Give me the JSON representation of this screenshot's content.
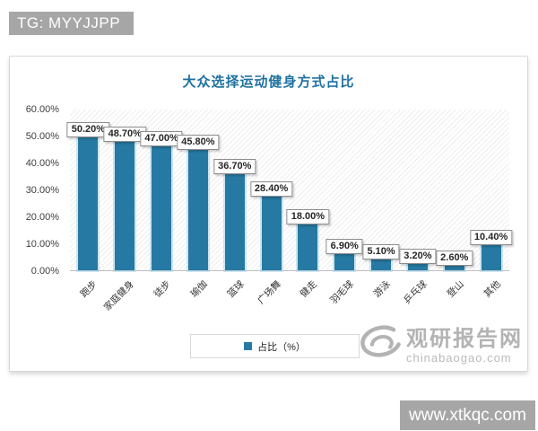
{
  "watermarks": {
    "tg_badge": "TG: MYYJJPP",
    "site_banner": "www.xtkqc.com",
    "logo": {
      "name": "观研报告网",
      "domain": "chinabaogao.com"
    }
  },
  "chart_data": {
    "type": "bar",
    "title": "大众选择运动健身方式占比",
    "categories": [
      "跑步",
      "家庭健身",
      "徒步",
      "瑜伽",
      "篮球",
      "广场舞",
      "健走",
      "羽毛球",
      "游泳",
      "乒乓球",
      "登山",
      "其他"
    ],
    "values": [
      50.2,
      48.7,
      47.0,
      45.8,
      36.7,
      28.4,
      18.0,
      6.9,
      5.1,
      3.2,
      2.6,
      10.4
    ],
    "value_labels": [
      "50.20%",
      "48.70%",
      "47.00%",
      "45.80%",
      "36.70%",
      "28.40%",
      "18.00%",
      "6.90%",
      "5.10%",
      "3.20%",
      "2.60%",
      "10.40%"
    ],
    "xlabel": "",
    "ylabel": "",
    "y_axis": {
      "min": 0,
      "max": 60,
      "tick_step": 10,
      "ticks": [
        "0.00%",
        "10.00%",
        "20.00%",
        "30.00%",
        "40.00%",
        "50.00%",
        "60.00%"
      ]
    },
    "legend": {
      "label": "占比（%）",
      "position": "bottom"
    },
    "grid": false,
    "plot_background": "diagonal-hatch",
    "bar_color": "#2679a2",
    "bar_halo_color": "#a8d4e8",
    "title_color": "#1f72a1"
  }
}
